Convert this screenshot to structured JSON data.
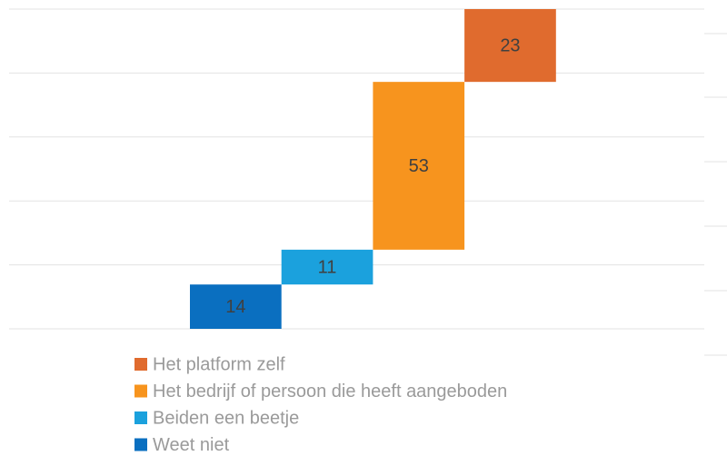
{
  "chart_data": {
    "type": "waterfall",
    "series": [
      {
        "name": "Weet niet",
        "color": "#0a6fc0",
        "values": [
          14
        ]
      },
      {
        "name": "Beiden een beetje",
        "color": "#1ba1dd",
        "values": [
          11
        ]
      },
      {
        "name": "Het bedrijf of persoon die heeft aangeboden",
        "color": "#f7941e",
        "values": [
          53
        ]
      },
      {
        "name": "Het platform zelf",
        "color": "#e06b2e",
        "values": [
          23
        ]
      }
    ],
    "ylim": [
      0,
      101
    ],
    "yticks": [
      0,
      20.2,
      40.4,
      60.6,
      80.8,
      101
    ],
    "grid": true,
    "legend": "bottom"
  }
}
